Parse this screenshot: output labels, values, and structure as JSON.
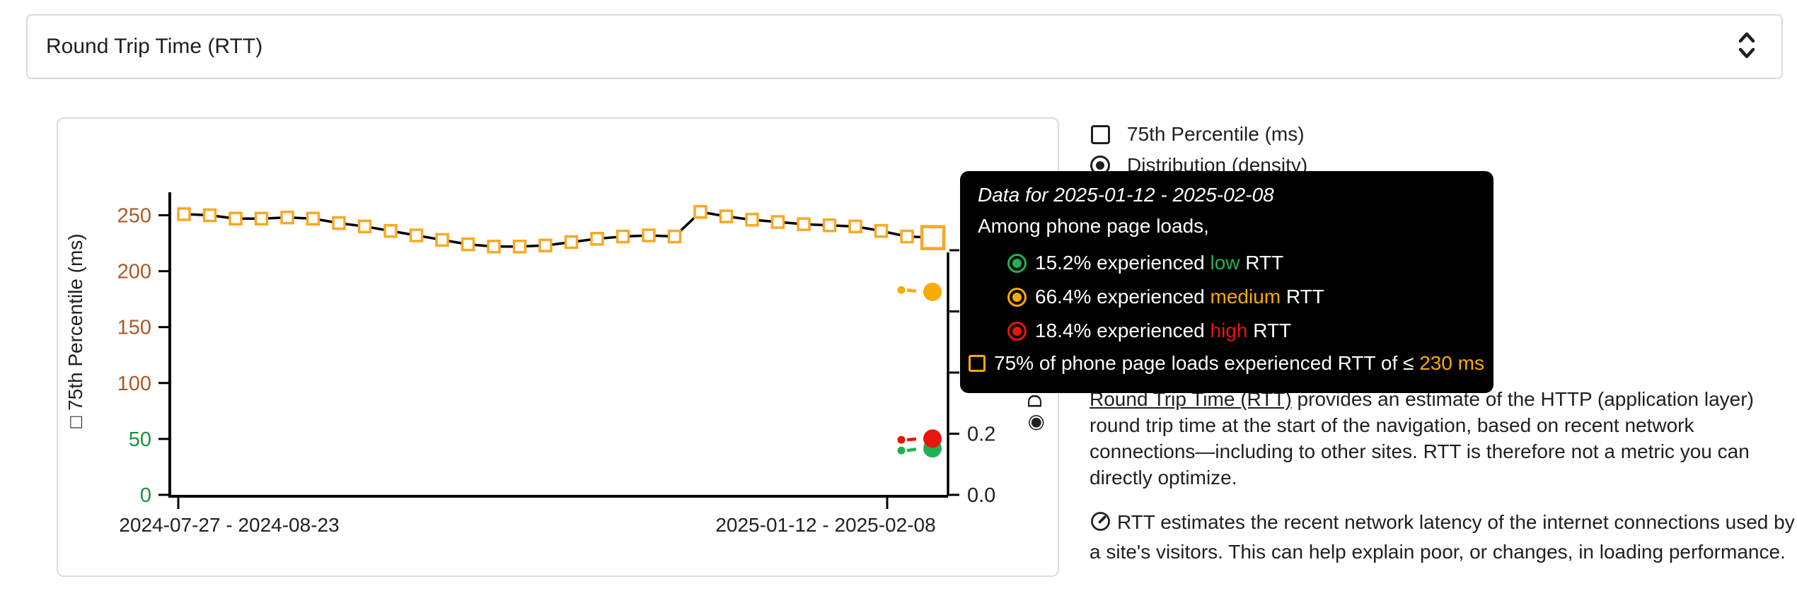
{
  "metric_selector": {
    "value": "Round Trip Time (RTT)"
  },
  "legend": {
    "items": [
      {
        "label": "75th Percentile (ms)",
        "control": "checkbox",
        "checked": false
      },
      {
        "label": "Distribution (density)",
        "control": "radio",
        "checked": true
      }
    ]
  },
  "colors": {
    "low_green": "#1fb254",
    "medium_orange": "#f9ab00",
    "high_red": "#ea150c",
    "marker_orange": "#f9a825",
    "axis_green": "#1a9142",
    "axis_brown": "#a85b25",
    "line_black": "#000000",
    "tooltip_bg": "#000000"
  },
  "chart_data": {
    "type": "line",
    "title": "",
    "ylabel": "75th Percentile (ms)",
    "ylabel_prefix": "□",
    "y2label": "Distribution (density)",
    "y2label_prefix": "◉",
    "ylim": [
      0,
      265
    ],
    "y2lim": [
      0.0,
      1.0
    ],
    "yticks": [
      {
        "v": 0,
        "label": "0",
        "color": "#1a9142"
      },
      {
        "v": 50,
        "label": "50",
        "color": "#1a9142"
      },
      {
        "v": 100,
        "label": "100",
        "color": "#a85b25"
      },
      {
        "v": 150,
        "label": "150",
        "color": "#a85b25"
      },
      {
        "v": 200,
        "label": "200",
        "color": "#a85b25"
      },
      {
        "v": 250,
        "label": "250",
        "color": "#a85b25"
      }
    ],
    "y2ticks": [
      0.0,
      0.2,
      0.4,
      0.6,
      0.8
    ],
    "y2tick_labels": [
      {
        "v": 0.2,
        "label": "0.2"
      },
      {
        "v": 0.0,
        "label": "0.0"
      }
    ],
    "xtick_labels": [
      "2024-07-27 - 2024-08-23",
      "2025-01-12 - 2025-02-08"
    ],
    "series": [
      {
        "name": "75th Percentile (ms)",
        "marker": "open-square",
        "marker_color": "#f9a825",
        "values": [
          251,
          250,
          247,
          247,
          248,
          247,
          243,
          240,
          236,
          232,
          228,
          224,
          222,
          222,
          223,
          226,
          229,
          231,
          232,
          231,
          253,
          249,
          246,
          244,
          242,
          241,
          240,
          236,
          231,
          230
        ],
        "highlight_last": true,
        "last_value": 230
      }
    ],
    "distribution_latest": [
      {
        "name": "low",
        "color": "#1fb254",
        "prev": 0.145,
        "value": 0.152
      },
      {
        "name": "high",
        "color": "#ea150c",
        "prev": 0.18,
        "value": 0.184
      },
      {
        "name": "medium",
        "color": "#f9ab00",
        "prev": 0.67,
        "value": 0.664
      }
    ],
    "legend_position": "top-right",
    "grid": false
  },
  "tooltip": {
    "title": "Data for 2025-01-12 - 2025-02-08",
    "subtitle": "Among phone page loads,",
    "rows": [
      {
        "pct": "15.2%",
        "middle": " experienced ",
        "level": "low",
        "tail": " RTT",
        "color": "#1fb254"
      },
      {
        "pct": "66.4%",
        "middle": " experienced ",
        "level": "medium",
        "tail": " RTT",
        "color": "#f9ab00"
      },
      {
        "pct": "18.4%",
        "middle": " experienced ",
        "level": "high",
        "tail": " RTT",
        "color": "#ea150c"
      }
    ],
    "threshold": {
      "lead": "75% of phone page loads experienced RTT of ≤ ",
      "value": "230 ms",
      "color": "#f9ab00"
    }
  },
  "description": {
    "p1_link": "Round Trip Time (RTT)",
    "p1_rest": " provides an estimate of the HTTP (application layer) round trip time at the start of the navigation, based on recent network connections—including to other sites. RTT is therefore not a metric you can directly optimize.",
    "p2_text": "RTT estimates the recent network latency of the internet connections used by a site's visitors. This can help explain poor, or changes, in loading performance."
  }
}
